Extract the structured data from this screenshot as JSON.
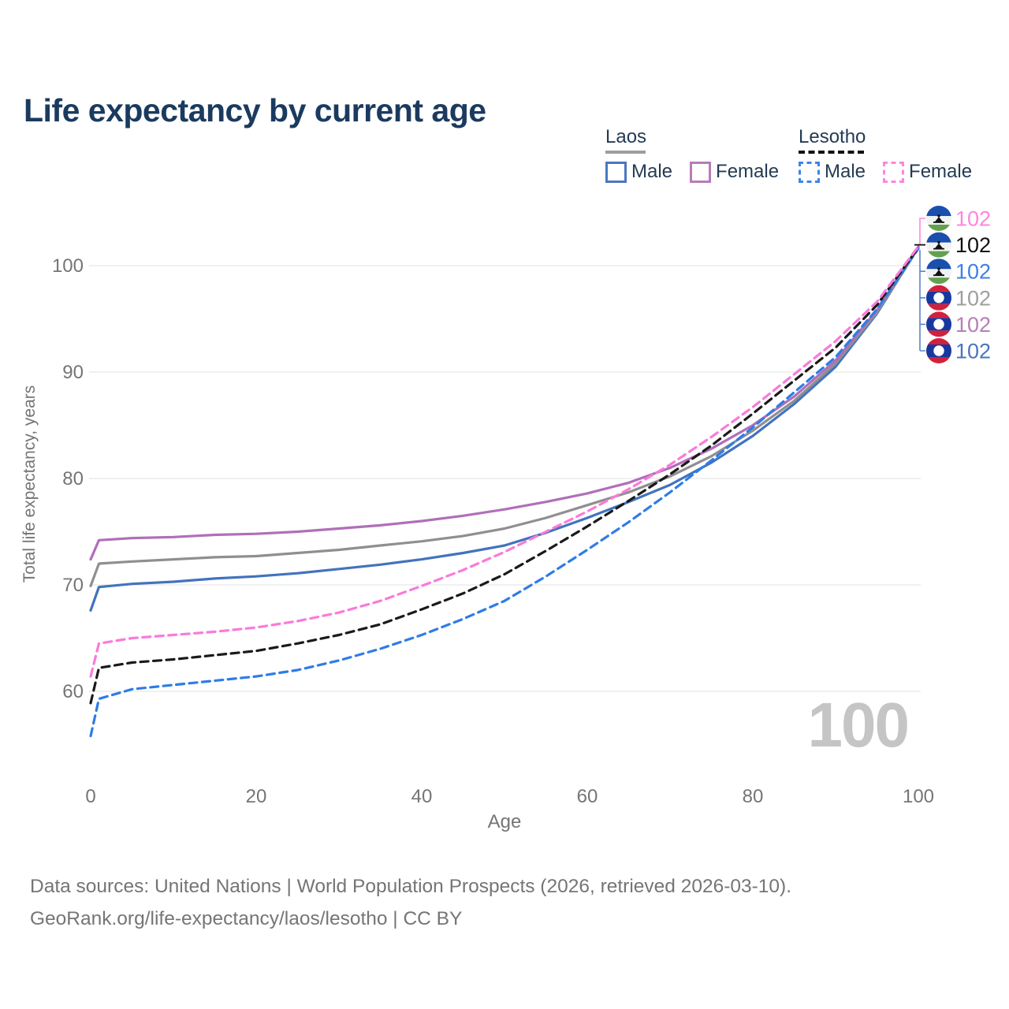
{
  "title": "Life expectancy by current age",
  "legend": {
    "laos": {
      "label": "Laos",
      "line_color": "#9e9e9e",
      "line_style": "solid",
      "male": {
        "label": "Male",
        "color": "#4a77c0"
      },
      "female": {
        "label": "Female",
        "color": "#b77cb7"
      }
    },
    "lesotho": {
      "label": "Lesotho",
      "line_color": "#111111",
      "line_style": "dashed",
      "male": {
        "label": "Male",
        "color": "#3d85e8"
      },
      "female": {
        "label": "Female",
        "color": "#ff85dc"
      }
    }
  },
  "watermark": "100",
  "footer": {
    "line1": "Data sources: United Nations | World Population Prospects (2026, retrieved 2026-03-10).",
    "line2": "GeoRank.org/life-expectancy/laos/lesotho | CC BY"
  },
  "chart_data": {
    "type": "line",
    "title": "Life expectancy by current age",
    "xlabel": "Age",
    "ylabel": "Total life expectancy, years",
    "xlim": [
      0,
      100
    ],
    "ylim": [
      55,
      104
    ],
    "x_ticks": [
      0,
      20,
      40,
      60,
      80,
      100
    ],
    "y_ticks": [
      60,
      70,
      80,
      90,
      100
    ],
    "grid": "horizontal-only",
    "legend_position": "top-right",
    "x": [
      0,
      1,
      5,
      10,
      15,
      20,
      25,
      30,
      35,
      40,
      45,
      50,
      55,
      60,
      65,
      70,
      75,
      80,
      85,
      90,
      95,
      100
    ],
    "series": [
      {
        "name": "Laos Male",
        "country": "Laos",
        "sex": "Male",
        "color": "#4273bd",
        "dashed": false,
        "values": [
          67.6,
          69.8,
          70.1,
          70.3,
          70.6,
          70.8,
          71.1,
          71.5,
          71.9,
          72.4,
          73.0,
          73.7,
          74.9,
          76.3,
          77.8,
          79.4,
          81.5,
          84.0,
          87.0,
          90.5,
          95.5,
          101.7
        ]
      },
      {
        "name": "Laos Total",
        "country": "Laos",
        "sex": "Both",
        "color": "#8f8f8f",
        "dashed": false,
        "values": [
          69.9,
          72.0,
          72.2,
          72.4,
          72.6,
          72.7,
          73.0,
          73.3,
          73.7,
          74.1,
          74.6,
          75.3,
          76.3,
          77.5,
          78.7,
          80.2,
          82.1,
          84.5,
          87.3,
          90.8,
          95.6,
          101.7
        ]
      },
      {
        "name": "Laos Female",
        "country": "Laos",
        "sex": "Female",
        "color": "#b06fb8",
        "dashed": false,
        "values": [
          72.4,
          74.2,
          74.4,
          74.5,
          74.7,
          74.8,
          75.0,
          75.3,
          75.6,
          76.0,
          76.5,
          77.1,
          77.8,
          78.6,
          79.6,
          81.0,
          82.8,
          85.0,
          87.7,
          91.1,
          95.8,
          101.8
        ]
      },
      {
        "name": "Lesotho Male",
        "country": "Lesotho",
        "sex": "Male",
        "color": "#2e7ce8",
        "dashed": true,
        "values": [
          55.8,
          59.3,
          60.2,
          60.6,
          61.0,
          61.4,
          62.0,
          62.9,
          64.0,
          65.3,
          66.8,
          68.5,
          70.8,
          73.3,
          75.9,
          78.7,
          81.7,
          84.8,
          88.1,
          91.4,
          95.9,
          101.6
        ]
      },
      {
        "name": "Lesotho Total",
        "country": "Lesotho",
        "sex": "Both",
        "color": "#1a1a1a",
        "dashed": true,
        "values": [
          58.9,
          62.2,
          62.7,
          63.0,
          63.4,
          63.8,
          64.5,
          65.3,
          66.3,
          67.7,
          69.2,
          71.0,
          73.2,
          75.5,
          77.9,
          80.4,
          83.1,
          86.1,
          89.2,
          92.3,
          96.3,
          101.7
        ]
      },
      {
        "name": "Lesotho Female",
        "country": "Lesotho",
        "sex": "Female",
        "color": "#fb7ad9",
        "dashed": true,
        "values": [
          61.4,
          64.5,
          65.0,
          65.3,
          65.6,
          66.0,
          66.6,
          67.4,
          68.5,
          69.9,
          71.4,
          73.1,
          75.0,
          76.9,
          79.0,
          81.3,
          83.9,
          86.7,
          89.8,
          92.9,
          96.6,
          101.8
        ]
      }
    ],
    "end_labels": [
      {
        "label": "102",
        "series": "Lesotho Female",
        "color": "#ff85dc",
        "flag": "lesotho"
      },
      {
        "label": "102",
        "series": "Lesotho Total",
        "color": "#111111",
        "flag": "lesotho"
      },
      {
        "label": "102",
        "series": "Lesotho Male",
        "color": "#3d7fe8",
        "flag": "lesotho"
      },
      {
        "label": "102",
        "series": "Laos Total",
        "color": "#9e9e9e",
        "flag": "laos"
      },
      {
        "label": "102",
        "series": "Laos Female",
        "color": "#b57fb5",
        "flag": "laos"
      },
      {
        "label": "102",
        "series": "Laos Male",
        "color": "#4a74bc",
        "flag": "laos"
      }
    ],
    "flag_colors": {
      "laos": {
        "red": "#d3203c",
        "blue": "#17389f",
        "disc": "#ffffff"
      },
      "lesotho": {
        "blue": "#1a4fae",
        "white": "#f2f2f2",
        "green": "#62a24d",
        "hat": "#111111"
      }
    }
  }
}
